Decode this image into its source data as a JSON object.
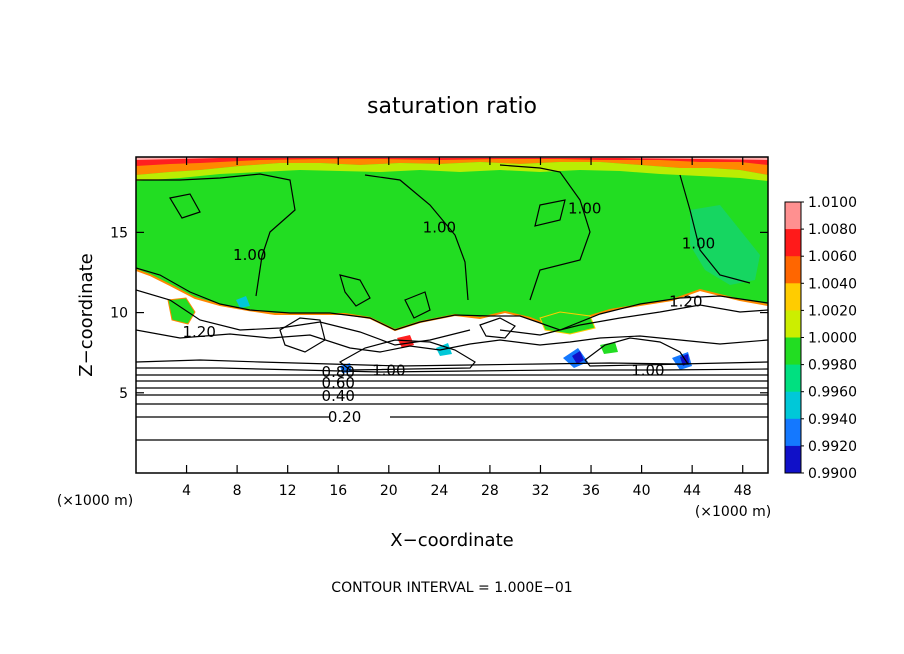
{
  "chart_data": {
    "type": "heatmap",
    "title": "saturation ratio",
    "xlabel": "X−coordinate",
    "ylabel": "Z−coordinate",
    "x_unit_label": "(×1000 m)",
    "y_unit_label": "(×1000 m)",
    "xlim": [
      0,
      50
    ],
    "ylim": [
      0,
      19.7
    ],
    "x_ticks": [
      4,
      8,
      12,
      16,
      20,
      24,
      28,
      32,
      36,
      40,
      44,
      48
    ],
    "y_ticks": [
      5,
      10,
      15
    ],
    "contour_interval_text": "CONTOUR INTERVAL = 1.000E−01",
    "colorbar": {
      "levels": [
        "1.0100",
        "1.0080",
        "1.0060",
        "1.0040",
        "1.0020",
        "1.0000",
        "0.9980",
        "0.9960",
        "0.9940",
        "0.9920",
        "0.9900"
      ],
      "colors": [
        "#ff9090",
        "#ff1a1a",
        "#ff6600",
        "#ffcc00",
        "#ccee00",
        "#22dd22",
        "#00e080",
        "#00c8d8",
        "#1478ff",
        "#1010c8",
        "#7a20b4"
      ]
    },
    "contour_labels": [
      {
        "text": "1.00",
        "x": 9.0,
        "z": 13.6
      },
      {
        "text": "1.00",
        "x": 24.0,
        "z": 15.3
      },
      {
        "text": "1.00",
        "x": 35.5,
        "z": 16.5
      },
      {
        "text": "1.00",
        "x": 44.5,
        "z": 14.3
      },
      {
        "text": "1.20",
        "x": 5.0,
        "z": 8.8
      },
      {
        "text": "1.20",
        "x": 43.5,
        "z": 10.7
      },
      {
        "text": "1.00",
        "x": 20.0,
        "z": 6.4
      },
      {
        "text": "1.00",
        "x": 40.5,
        "z": 6.4
      },
      {
        "text": "0.80",
        "x": 16.0,
        "z": 6.3
      },
      {
        "text": "0.60",
        "x": 16.0,
        "z": 5.6
      },
      {
        "text": "0.40",
        "x": 16.0,
        "z": 4.8
      },
      {
        "text": "0.20",
        "x": 16.5,
        "z": 3.5
      }
    ]
  }
}
